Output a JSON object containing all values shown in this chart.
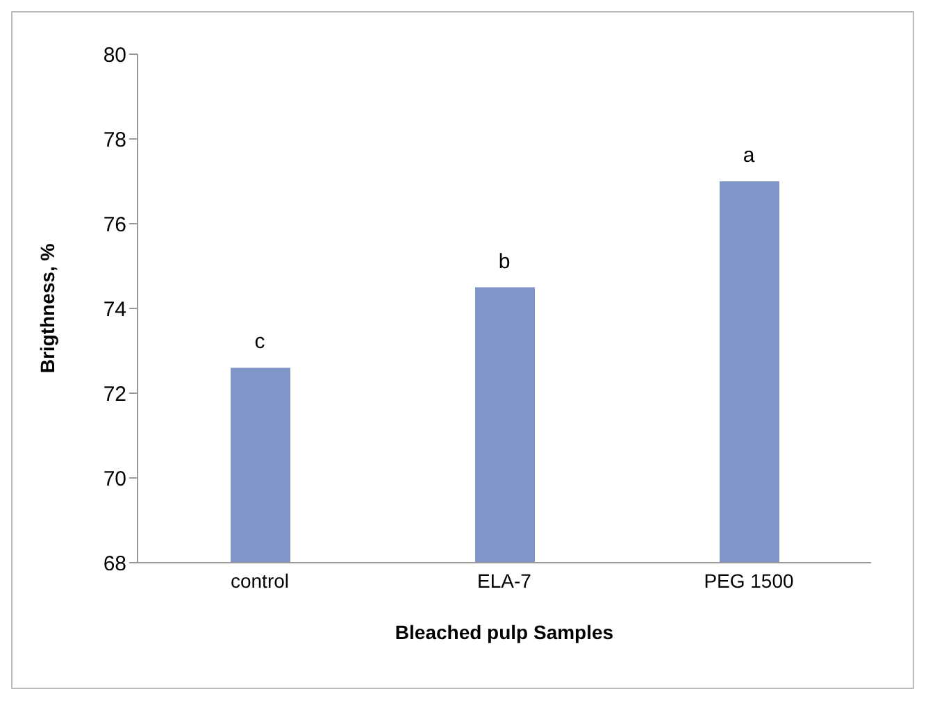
{
  "chart_data": {
    "type": "bar",
    "xlabel": "Bleached pulp Samples",
    "ylabel": "Brigthness, %",
    "categories": [
      "control",
      "ELA-7",
      "PEG 1500"
    ],
    "values": [
      72.6,
      74.5,
      77.0
    ],
    "color": "#8096c8",
    "ylim": [
      68,
      80
    ],
    "yticks": [
      68,
      70,
      72,
      74,
      76,
      78,
      80
    ],
    "grid": false,
    "legend": false,
    "annotations": [
      {
        "text": "c",
        "x": "control",
        "y": 72.6
      },
      {
        "text": "b",
        "x": "ELA-7",
        "y": 74.5
      },
      {
        "text": "a",
        "x": "PEG 1500",
        "y": 77.0
      }
    ]
  }
}
